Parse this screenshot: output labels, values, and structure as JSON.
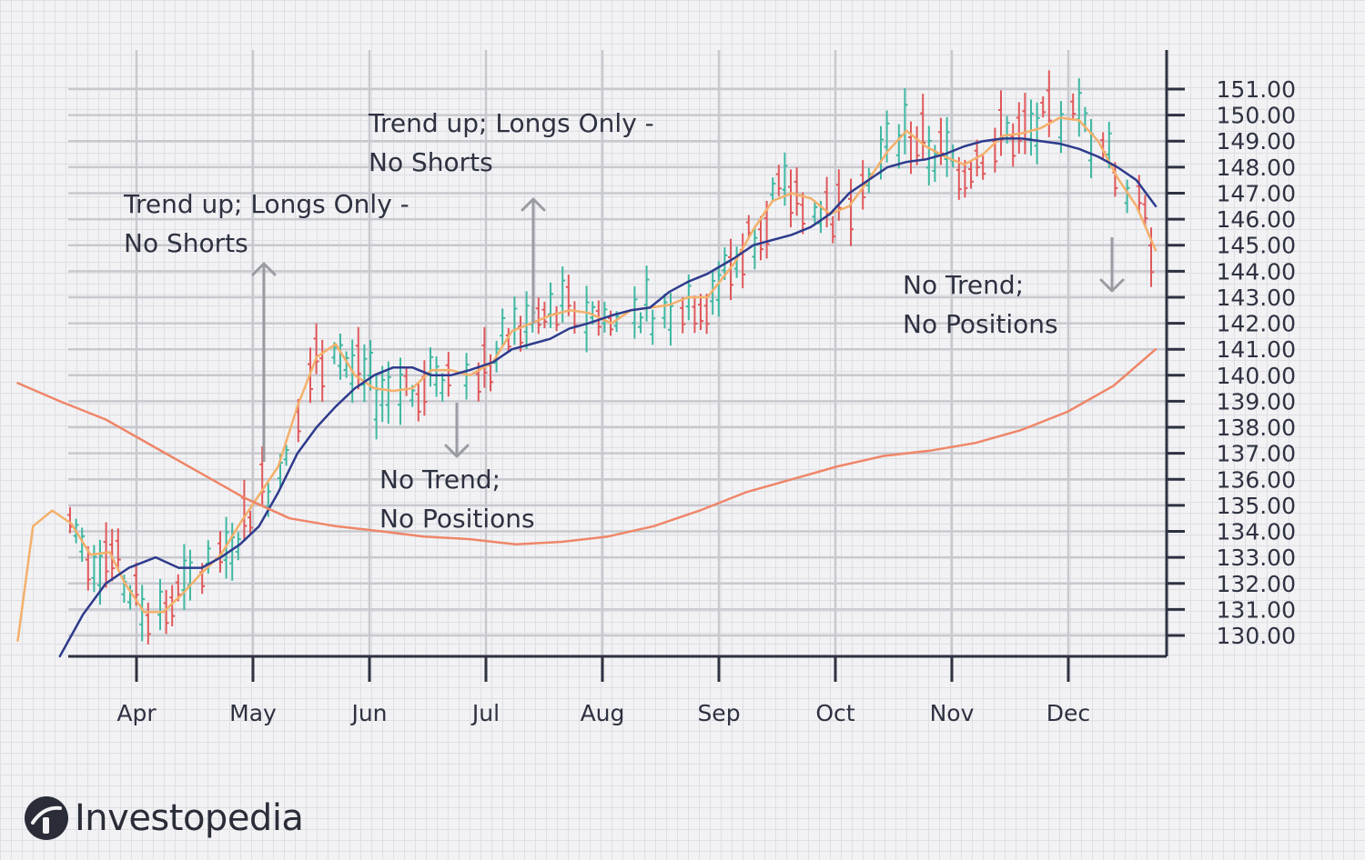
{
  "chart_data": {
    "type": "line",
    "subtype": "ohlc-with-moving-averages",
    "x_months": [
      "Apr",
      "May",
      "Jun",
      "Jul",
      "Aug",
      "Sep",
      "Oct",
      "Nov",
      "Dec"
    ],
    "y_ticks": [
      "151.00",
      "150.00",
      "149.00",
      "148.00",
      "147.00",
      "146.00",
      "145.00",
      "144.00",
      "143.00",
      "142.00",
      "141.00",
      "140.00",
      "139.00",
      "138.00",
      "137.00",
      "136.00",
      "135.00",
      "134.00",
      "133.00",
      "132.00",
      "131.00",
      "130.00"
    ],
    "ylim": [
      129.0,
      152.0
    ],
    "y_axis_position": "right",
    "grid": true,
    "colors": {
      "bullish": "#3fb8a2",
      "bearish": "#e0585a",
      "fast_ma": "#f4b06b",
      "medium_ma": "#2e3b8c",
      "slow_ma": "#ee8668",
      "axis": "#2e3140",
      "grid": "#c8c9cf",
      "arrow": "#9a9ba3"
    },
    "series": [
      {
        "style": "fast-ma",
        "points": [
          [
            "2019-03-01",
            129.8
          ],
          [
            "2019-03-05",
            134.2
          ],
          [
            "2019-03-10",
            134.8
          ],
          [
            "2019-03-15",
            134.3
          ],
          [
            "2019-03-20",
            133.1
          ],
          [
            "2019-03-25",
            133.2
          ],
          [
            "2019-03-29",
            132.0
          ],
          [
            "2019-04-03",
            130.9
          ],
          [
            "2019-04-08",
            130.9
          ],
          [
            "2019-04-13",
            131.6
          ],
          [
            "2019-04-18",
            132.4
          ],
          [
            "2019-04-23",
            133.1
          ],
          [
            "2019-04-28",
            134.3
          ],
          [
            "2019-05-03",
            135.4
          ],
          [
            "2019-05-08",
            136.5
          ],
          [
            "2019-05-13",
            138.8
          ],
          [
            "2019-05-18",
            140.7
          ],
          [
            "2019-05-23",
            141.2
          ],
          [
            "2019-05-28",
            140.0
          ],
          [
            "2019-06-02",
            139.5
          ],
          [
            "2019-06-07",
            139.4
          ],
          [
            "2019-06-12",
            139.5
          ],
          [
            "2019-06-17",
            140.2
          ],
          [
            "2019-06-22",
            140.2
          ],
          [
            "2019-06-27",
            140.0
          ],
          [
            "2019-07-03",
            140.5
          ],
          [
            "2019-07-08",
            141.7
          ],
          [
            "2019-07-13",
            142.0
          ],
          [
            "2019-07-18",
            142.3
          ],
          [
            "2019-07-23",
            142.5
          ],
          [
            "2019-07-28",
            142.4
          ],
          [
            "2019-08-03",
            142.0
          ],
          [
            "2019-08-08",
            142.5
          ],
          [
            "2019-08-13",
            142.6
          ],
          [
            "2019-08-18",
            142.7
          ],
          [
            "2019-08-23",
            143.0
          ],
          [
            "2019-08-28",
            143.0
          ],
          [
            "2019-09-04",
            144.3
          ],
          [
            "2019-09-09",
            145.6
          ],
          [
            "2019-09-14",
            146.7
          ],
          [
            "2019-09-19",
            147.0
          ],
          [
            "2019-09-24",
            146.8
          ],
          [
            "2019-09-29",
            146.2
          ],
          [
            "2019-10-04",
            146.5
          ],
          [
            "2019-10-09",
            147.5
          ],
          [
            "2019-10-14",
            148.6
          ],
          [
            "2019-10-19",
            149.4
          ],
          [
            "2019-10-24",
            148.8
          ],
          [
            "2019-10-29",
            148.4
          ],
          [
            "2019-11-03",
            148.1
          ],
          [
            "2019-11-08",
            148.5
          ],
          [
            "2019-11-13",
            149.2
          ],
          [
            "2019-11-18",
            149.3
          ],
          [
            "2019-11-23",
            149.5
          ],
          [
            "2019-11-28",
            149.9
          ],
          [
            "2019-12-03",
            149.8
          ],
          [
            "2019-12-08",
            149.0
          ],
          [
            "2019-12-13",
            147.6
          ],
          [
            "2019-12-18",
            146.5
          ],
          [
            "2019-12-23",
            144.8
          ]
        ]
      },
      {
        "style": "medium-ma",
        "points": [
          [
            "2019-03-12",
            129.2
          ],
          [
            "2019-03-18",
            130.8
          ],
          [
            "2019-03-24",
            132.0
          ],
          [
            "2019-03-30",
            132.6
          ],
          [
            "2019-04-06",
            133.0
          ],
          [
            "2019-04-12",
            132.6
          ],
          [
            "2019-04-18",
            132.6
          ],
          [
            "2019-04-23",
            133.0
          ],
          [
            "2019-04-28",
            133.5
          ],
          [
            "2019-05-03",
            134.2
          ],
          [
            "2019-05-08",
            135.5
          ],
          [
            "2019-05-13",
            137.0
          ],
          [
            "2019-05-18",
            138.0
          ],
          [
            "2019-05-23",
            138.8
          ],
          [
            "2019-05-28",
            139.5
          ],
          [
            "2019-06-02",
            140.0
          ],
          [
            "2019-06-07",
            140.3
          ],
          [
            "2019-06-12",
            140.3
          ],
          [
            "2019-06-17",
            140.0
          ],
          [
            "2019-06-22",
            140.0
          ],
          [
            "2019-06-27",
            140.2
          ],
          [
            "2019-07-03",
            140.5
          ],
          [
            "2019-07-08",
            141.0
          ],
          [
            "2019-07-13",
            141.2
          ],
          [
            "2019-07-18",
            141.4
          ],
          [
            "2019-07-23",
            141.8
          ],
          [
            "2019-07-28",
            142.0
          ],
          [
            "2019-08-03",
            142.3
          ],
          [
            "2019-08-08",
            142.5
          ],
          [
            "2019-08-13",
            142.6
          ],
          [
            "2019-08-18",
            143.2
          ],
          [
            "2019-08-23",
            143.6
          ],
          [
            "2019-08-28",
            143.9
          ],
          [
            "2019-09-04",
            144.5
          ],
          [
            "2019-09-09",
            145.0
          ],
          [
            "2019-09-14",
            145.2
          ],
          [
            "2019-09-19",
            145.4
          ],
          [
            "2019-09-24",
            145.7
          ],
          [
            "2019-09-29",
            146.2
          ],
          [
            "2019-10-04",
            147.0
          ],
          [
            "2019-10-09",
            147.5
          ],
          [
            "2019-10-14",
            148.0
          ],
          [
            "2019-10-19",
            148.2
          ],
          [
            "2019-10-24",
            148.3
          ],
          [
            "2019-10-29",
            148.5
          ],
          [
            "2019-11-03",
            148.8
          ],
          [
            "2019-11-08",
            149.0
          ],
          [
            "2019-11-13",
            149.1
          ],
          [
            "2019-11-18",
            149.1
          ],
          [
            "2019-11-23",
            149.0
          ],
          [
            "2019-11-28",
            148.9
          ],
          [
            "2019-12-03",
            148.7
          ],
          [
            "2019-12-08",
            148.4
          ],
          [
            "2019-12-13",
            148.0
          ],
          [
            "2019-12-18",
            147.5
          ],
          [
            "2019-12-23",
            146.5
          ]
        ]
      },
      {
        "style": "slow-ma",
        "points": [
          [
            "2019-03-01",
            139.7
          ],
          [
            "2019-03-12",
            139.0
          ],
          [
            "2019-03-24",
            138.3
          ],
          [
            "2019-04-05",
            137.3
          ],
          [
            "2019-04-17",
            136.3
          ],
          [
            "2019-04-29",
            135.3
          ],
          [
            "2019-05-11",
            134.5
          ],
          [
            "2019-05-23",
            134.2
          ],
          [
            "2019-06-04",
            134.0
          ],
          [
            "2019-06-15",
            133.8
          ],
          [
            "2019-06-27",
            133.7
          ],
          [
            "2019-07-09",
            133.5
          ],
          [
            "2019-07-21",
            133.6
          ],
          [
            "2019-08-02",
            133.8
          ],
          [
            "2019-08-14",
            134.2
          ],
          [
            "2019-08-26",
            134.8
          ],
          [
            "2019-09-07",
            135.5
          ],
          [
            "2019-09-19",
            136.0
          ],
          [
            "2019-10-01",
            136.5
          ],
          [
            "2019-10-13",
            136.9
          ],
          [
            "2019-10-25",
            137.1
          ],
          [
            "2019-11-06",
            137.4
          ],
          [
            "2019-11-18",
            137.9
          ],
          [
            "2019-11-30",
            138.6
          ],
          [
            "2019-12-12",
            139.6
          ],
          [
            "2019-12-23",
            141.0
          ]
        ]
      }
    ],
    "annotations": [
      {
        "lines": [
          "Trend up; Longs Only -",
          "No Shorts"
        ],
        "arrow": "up"
      },
      {
        "lines": [
          "Trend up; Longs Only -",
          "No Shorts"
        ],
        "arrow": "up"
      },
      {
        "lines": [
          "No Trend;",
          "No Positions"
        ],
        "arrow": "down"
      },
      {
        "lines": [
          "No Trend;",
          "No Positions"
        ],
        "arrow": "down"
      }
    ]
  },
  "brand": {
    "name": "Investopedia",
    "icon": "investopedia-logo-icon"
  }
}
